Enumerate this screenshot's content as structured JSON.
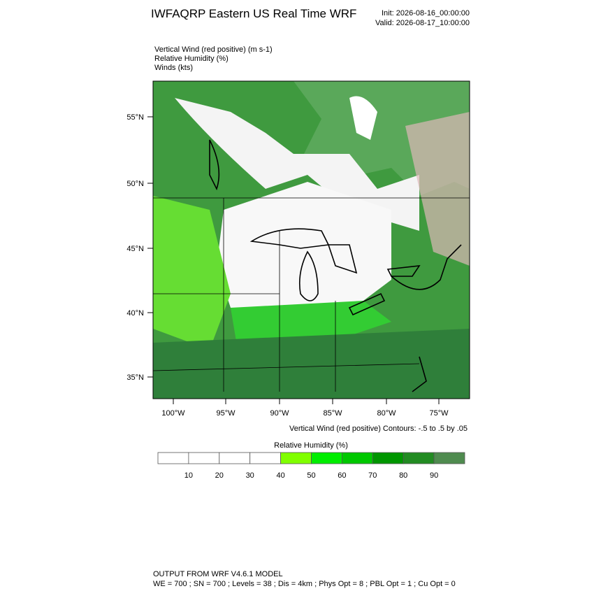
{
  "header": {
    "title": "IWFAQRP Eastern US Real Time WRF",
    "init": "Init: 2026-08-16_00:00:00",
    "valid": "Valid: 2026-08-17_10:00:00"
  },
  "fields": [
    "Vertical Wind (red positive)   (m s-1)",
    "Relative Humidity   (%)",
    "Winds   (kts)"
  ],
  "map": {
    "lat_labels": [
      "55°N",
      "50°N",
      "45°N",
      "40°N",
      "35°N"
    ],
    "lon_labels": [
      "100°W",
      "95°W",
      "90°W",
      "85°W",
      "80°W",
      "75°W"
    ],
    "contour_note": "Vertical Wind (red positive) Contours: -.5 to .5 by .05"
  },
  "colorbar": {
    "title": "Relative Humidity  (%)",
    "ticks": [
      10,
      20,
      30,
      40,
      50,
      60,
      70,
      80,
      90
    ],
    "colors": [
      "#ffffff",
      "#ffffff",
      "#ffffff",
      "#ffffff",
      "#80ff00",
      "#00ee00",
      "#00c800",
      "#009600",
      "#228b22",
      "#4f8b4f"
    ]
  },
  "footer": {
    "line1": "OUTPUT FROM WRF V4.6.1 MODEL",
    "line2": "WE = 700 ; SN = 700 ; Levels = 38 ; Dis = 4km ; Phys Opt = 8 ; PBL Opt = 1 ; Cu Opt = 0"
  }
}
